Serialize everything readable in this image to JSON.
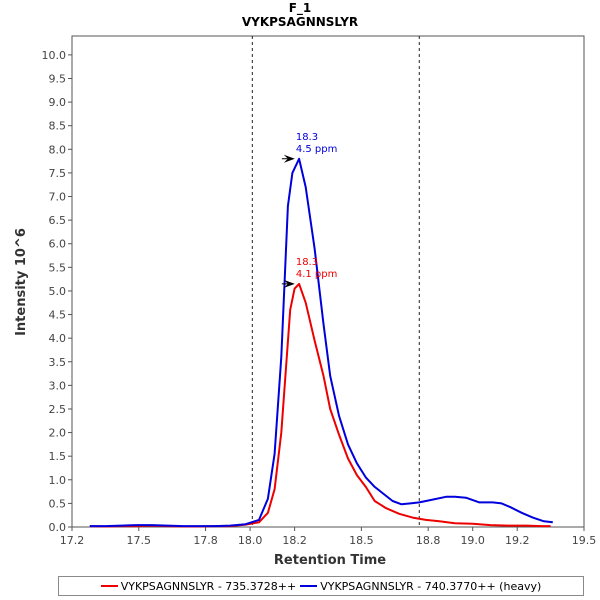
{
  "chart_data": {
    "type": "line",
    "title": "F_1",
    "subtitle": "VYKPSAGNNSLYR",
    "xlabel": "Retention Time",
    "ylabel": "Intensity 10^6",
    "xlim": [
      17.2,
      19.5
    ],
    "ylim": [
      0,
      10.4
    ],
    "xticks": [
      17.2,
      17.5,
      17.8,
      18.0,
      18.2,
      18.5,
      18.8,
      19.0,
      19.2,
      19.5
    ],
    "xtick_labels": [
      "17.2",
      "17.5",
      "17.8",
      "18.0",
      "18.2",
      "18.5",
      "18.8",
      "19.0",
      "19.2",
      "19.5"
    ],
    "yticks": [
      0.0,
      0.5,
      1.0,
      1.5,
      2.0,
      2.5,
      3.0,
      3.5,
      4.0,
      4.5,
      5.0,
      5.5,
      6.0,
      6.5,
      7.0,
      7.5,
      8.0,
      8.5,
      9.0,
      9.5,
      10.0
    ],
    "ytick_labels": [
      "0.0",
      "0.5",
      "1.0",
      "1.5",
      "2.0",
      "2.5",
      "3.0",
      "3.5",
      "4.0",
      "4.5",
      "5.0",
      "5.5",
      "6.0",
      "6.5",
      "7.0",
      "7.5",
      "8.0",
      "8.5",
      "9.0",
      "9.5",
      "10.0"
    ],
    "vlines": [
      18.01,
      18.76
    ],
    "legend_position": "bottom",
    "grid": false,
    "series": [
      {
        "name": "VYKPSAGNNSLYR - 735.3728++",
        "color": "#ee0000",
        "x": [
          17.28,
          17.35,
          17.42,
          17.49,
          17.56,
          17.63,
          17.7,
          17.77,
          17.84,
          17.91,
          17.98,
          18.04,
          18.08,
          18.11,
          18.14,
          18.18,
          18.2,
          18.22,
          18.25,
          18.29,
          18.33,
          18.36,
          18.4,
          18.44,
          18.48,
          18.52,
          18.56,
          18.61,
          18.67,
          18.73,
          18.79,
          18.85,
          18.92,
          19.0,
          19.08,
          19.16,
          19.24,
          19.31,
          19.35
        ],
        "y": [
          0.02,
          0.01,
          0.02,
          0.02,
          0.03,
          0.02,
          0.01,
          0.01,
          0.02,
          0.02,
          0.05,
          0.1,
          0.3,
          0.8,
          2.0,
          4.6,
          5.05,
          5.15,
          4.75,
          3.95,
          3.2,
          2.5,
          1.95,
          1.45,
          1.1,
          0.85,
          0.55,
          0.4,
          0.28,
          0.2,
          0.15,
          0.12,
          0.08,
          0.07,
          0.04,
          0.03,
          0.03,
          0.02,
          0.02
        ]
      },
      {
        "name": "VYKPSAGNNSLYR - 740.3770++ (heavy)",
        "color": "#0000dd",
        "x": [
          17.28,
          17.35,
          17.42,
          17.49,
          17.56,
          17.63,
          17.7,
          17.77,
          17.84,
          17.91,
          17.98,
          18.04,
          18.08,
          18.11,
          18.14,
          18.17,
          18.19,
          18.22,
          18.25,
          18.29,
          18.33,
          18.36,
          18.4,
          18.44,
          18.48,
          18.52,
          18.56,
          18.6,
          18.64,
          18.68,
          18.72,
          18.76,
          18.82,
          18.88,
          18.92,
          18.97,
          19.03,
          19.09,
          19.13,
          19.17,
          19.22,
          19.27,
          19.32,
          19.36
        ],
        "y": [
          0.02,
          0.02,
          0.03,
          0.04,
          0.04,
          0.03,
          0.02,
          0.02,
          0.02,
          0.03,
          0.06,
          0.15,
          0.6,
          1.55,
          3.6,
          6.8,
          7.5,
          7.8,
          7.2,
          5.9,
          4.3,
          3.2,
          2.35,
          1.75,
          1.35,
          1.05,
          0.85,
          0.7,
          0.55,
          0.48,
          0.5,
          0.52,
          0.58,
          0.64,
          0.64,
          0.62,
          0.52,
          0.52,
          0.5,
          0.42,
          0.3,
          0.2,
          0.12,
          0.1
        ]
      }
    ],
    "annotations": [
      {
        "series": 0,
        "x": 18.21,
        "y": 5.15,
        "text_top": "18.3",
        "text_bottom": "4.1 ppm"
      },
      {
        "series": 1,
        "x": 18.21,
        "y": 7.8,
        "text_top": "18.3",
        "text_bottom": "4.5 ppm"
      }
    ]
  }
}
